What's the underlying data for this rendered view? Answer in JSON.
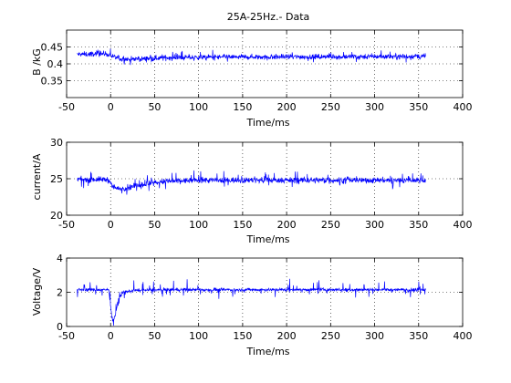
{
  "figure": {
    "background": "#ffffff",
    "trace_color": "#0000ff",
    "axes_color": "#000000"
  },
  "chart_data": [
    {
      "type": "line",
      "title": "25A-25Hz.- Data",
      "xlabel": "Time/ms",
      "ylabel": "B /kG",
      "xlim": [
        -50,
        400
      ],
      "ylim": [
        0.3,
        0.5
      ],
      "xticks": [
        -50,
        0,
        50,
        100,
        150,
        200,
        250,
        300,
        350,
        400
      ],
      "yticks": [
        0.35,
        0.4,
        0.45
      ],
      "grid": "dotted",
      "x_range": [
        -38,
        358
      ],
      "series": [
        {
          "baseline": [
            [
              -38,
              0.428
            ],
            [
              -5,
              0.43
            ],
            [
              0,
              0.425
            ],
            [
              5,
              0.418
            ],
            [
              15,
              0.413
            ],
            [
              30,
              0.414
            ],
            [
              60,
              0.418
            ],
            [
              120,
              0.42
            ],
            [
              358,
              0.422
            ]
          ],
          "noise": 0.007,
          "spike": 0.02
        }
      ]
    },
    {
      "type": "line",
      "title": "",
      "xlabel": "Time/ms",
      "ylabel": "current/A",
      "xlim": [
        -50,
        400
      ],
      "ylim": [
        20,
        30
      ],
      "xticks": [
        -50,
        0,
        50,
        100,
        150,
        200,
        250,
        300,
        350,
        400
      ],
      "yticks": [
        20,
        25,
        30
      ],
      "grid": "dotted",
      "x_range": [
        -38,
        358
      ],
      "series": [
        {
          "baseline": [
            [
              -38,
              24.9
            ],
            [
              -2,
              24.9
            ],
            [
              2,
              24.0
            ],
            [
              8,
              23.6
            ],
            [
              20,
              23.8
            ],
            [
              40,
              24.3
            ],
            [
              60,
              24.6
            ],
            [
              100,
              24.8
            ],
            [
              358,
              24.8
            ]
          ],
          "noise": 0.35,
          "spike": 1.8
        }
      ]
    },
    {
      "type": "line",
      "title": "",
      "xlabel": "Time/ms",
      "ylabel": "Voltage/V",
      "xlim": [
        -50,
        400
      ],
      "ylim": [
        0,
        4
      ],
      "xticks": [
        -50,
        0,
        50,
        100,
        150,
        200,
        250,
        300,
        350,
        400
      ],
      "yticks": [
        0,
        2,
        4
      ],
      "grid": "dotted",
      "x_range": [
        -38,
        358
      ],
      "series": [
        {
          "baseline": [
            [
              -38,
              2.15
            ],
            [
              -2,
              2.15
            ],
            [
              0,
              1.2
            ],
            [
              2,
              0.3
            ],
            [
              5,
              0.6
            ],
            [
              9,
              1.6
            ],
            [
              14,
              2.0
            ],
            [
              25,
              2.1
            ],
            [
              60,
              2.15
            ],
            [
              358,
              2.15
            ]
          ],
          "noise": 0.08,
          "spike": 0.9
        }
      ]
    }
  ]
}
